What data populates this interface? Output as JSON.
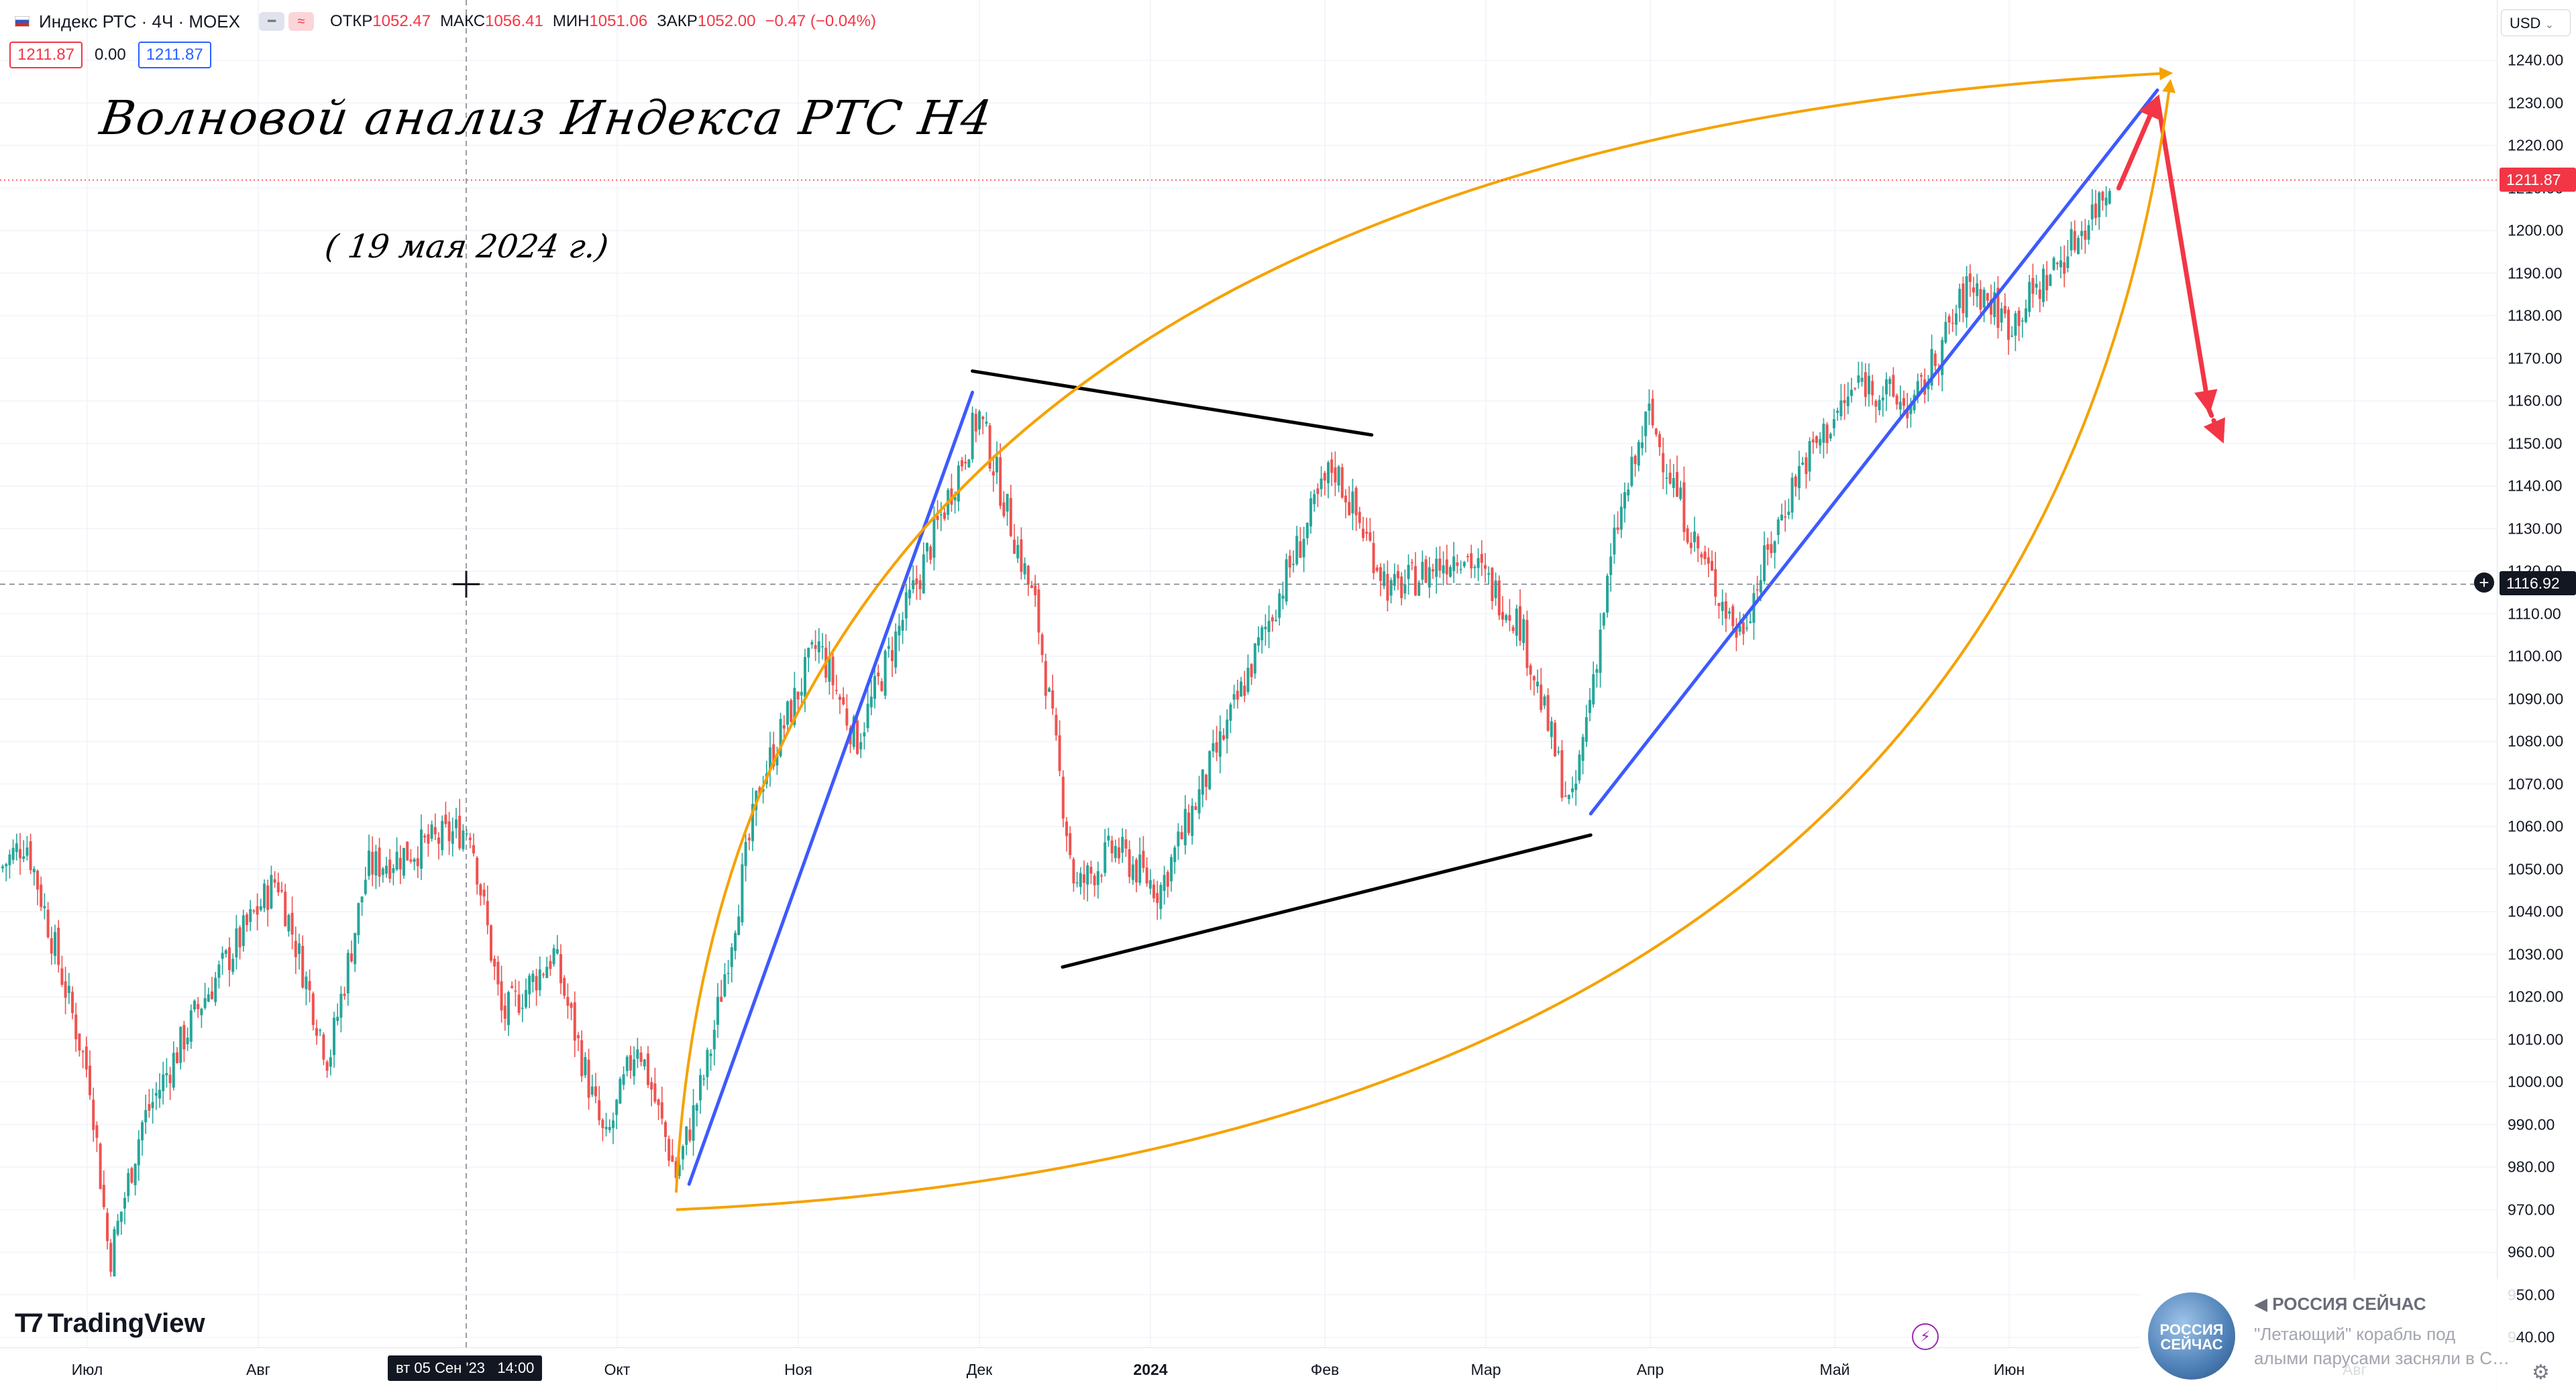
{
  "header": {
    "symbol": "Индекс РТС · 4Ч · MOEX",
    "ohlc": [
      {
        "k": "ОТКР",
        "v": "1052.47"
      },
      {
        "k": "МАКС",
        "v": "1056.41"
      },
      {
        "k": "МИН",
        "v": "1051.06"
      },
      {
        "k": "ЗАКР",
        "v": "1052.00"
      }
    ],
    "change": "−0.47 (−0.04%)",
    "bid": "1211.87",
    "spread": "0.00",
    "ask": "1211.87"
  },
  "annotations": {
    "title": "Волновой анализ Индекса РТС Н4",
    "date": "( 19 мая 2024 г.)"
  },
  "price_scale": {
    "currency": "USD",
    "current_price": "1211.87",
    "crosshair_price": "1116.92",
    "ticks": [
      "1240.00",
      "1230.00",
      "1220.00",
      "1210.00",
      "1200.00",
      "1190.00",
      "1180.00",
      "1170.00",
      "1160.00",
      "1150.00",
      "1140.00",
      "1130.00",
      "1120.00",
      "1110.00",
      "1100.00",
      "1090.00",
      "1080.00",
      "1070.00",
      "1060.00",
      "1050.00",
      "1040.00",
      "1030.00",
      "1020.00",
      "1010.00",
      "1000.00",
      "990.00",
      "980.00",
      "970.00",
      "960.00",
      "950.00",
      "940.00"
    ]
  },
  "time_axis": {
    "labels": [
      {
        "t": "Июл",
        "bold": false
      },
      {
        "t": "Авг",
        "bold": false
      },
      {
        "t": "Окт",
        "bold": false
      },
      {
        "t": "Ноя",
        "bold": false
      },
      {
        "t": "Дек",
        "bold": false
      },
      {
        "t": "2024",
        "bold": true
      },
      {
        "t": "Фев",
        "bold": false
      },
      {
        "t": "Мар",
        "bold": false
      },
      {
        "t": "Апр",
        "bold": false
      },
      {
        "t": "Май",
        "bold": false
      },
      {
        "t": "Июн",
        "bold": false
      },
      {
        "t": "Авг",
        "bold": false
      }
    ],
    "crosshair_time": "вт 05 Сен '23   14:00"
  },
  "branding": {
    "logo": "TradingView"
  },
  "news": {
    "source": "РОССИЯ СЕЙЧАС",
    "text1": "\"Летающий\" корабль под",
    "text2": "алыми парусами засняли в С…",
    "thumb": "РОССИЯ СЕЙЧАС"
  },
  "chart_data": {
    "type": "candlestick",
    "title": "Волновой анализ Индекса РТС Н4",
    "interval": "4H",
    "ylim": [
      938,
      1246
    ],
    "grid": true,
    "colors": {
      "up": "#26a69a",
      "down": "#ef5350",
      "blue": "#3d5afe",
      "orange": "#f5a200",
      "red": "#f23645",
      "black": "#000000"
    },
    "anchors": [
      {
        "date": "2023-06-24",
        "price": 1050
      },
      {
        "date": "2023-06-28",
        "price": 1057
      },
      {
        "date": "2023-07-08",
        "price": 1000
      },
      {
        "date": "2023-07-11",
        "price": 958
      },
      {
        "date": "2023-07-16",
        "price": 990
      },
      {
        "date": "2023-07-25",
        "price": 1018
      },
      {
        "date": "2023-08-06",
        "price": 1048
      },
      {
        "date": "2023-08-14",
        "price": 1005
      },
      {
        "date": "2023-08-20",
        "price": 1050
      },
      {
        "date": "2023-09-05",
        "price": 1060
      },
      {
        "date": "2023-09-10",
        "price": 1015
      },
      {
        "date": "2023-09-18",
        "price": 1030
      },
      {
        "date": "2023-09-26",
        "price": 985
      },
      {
        "date": "2023-10-01",
        "price": 1010
      },
      {
        "date": "2023-10-07",
        "price": 978
      },
      {
        "date": "2023-10-12",
        "price": 1005
      },
      {
        "date": "2023-10-20",
        "price": 1070
      },
      {
        "date": "2023-10-29",
        "price": 1103
      },
      {
        "date": "2023-11-04",
        "price": 1080
      },
      {
        "date": "2023-11-14",
        "price": 1120
      },
      {
        "date": "2023-11-23",
        "price": 1157
      },
      {
        "date": "2023-12-02",
        "price": 1110
      },
      {
        "date": "2023-12-08",
        "price": 1045
      },
      {
        "date": "2023-12-14",
        "price": 1055
      },
      {
        "date": "2023-12-21",
        "price": 1045
      },
      {
        "date": "2024-01-01",
        "price": 1085
      },
      {
        "date": "2024-01-10",
        "price": 1120
      },
      {
        "date": "2024-01-17",
        "price": 1145
      },
      {
        "date": "2024-01-26",
        "price": 1115
      },
      {
        "date": "2024-02-06",
        "price": 1125
      },
      {
        "date": "2024-02-15",
        "price": 1108
      },
      {
        "date": "2024-02-23",
        "price": 1063
      },
      {
        "date": "2024-03-01",
        "price": 1130
      },
      {
        "date": "2024-03-06",
        "price": 1157
      },
      {
        "date": "2024-03-13",
        "price": 1127
      },
      {
        "date": "2024-03-20",
        "price": 1105
      },
      {
        "date": "2024-03-29",
        "price": 1143
      },
      {
        "date": "2024-04-08",
        "price": 1165
      },
      {
        "date": "2024-04-16",
        "price": 1158
      },
      {
        "date": "2024-04-25",
        "price": 1188
      },
      {
        "date": "2024-05-01",
        "price": 1178
      },
      {
        "date": "2024-05-10",
        "price": 1195
      },
      {
        "date": "2024-05-17",
        "price": 1212
      }
    ],
    "drawings": [
      {
        "type": "line",
        "color": "blue",
        "from": {
          "date": "2023-10-09",
          "price": 976
        },
        "to": {
          "date": "2023-11-22",
          "price": 1162
        }
      },
      {
        "type": "line",
        "color": "blue",
        "from": {
          "date": "2024-02-26",
          "price": 1063
        },
        "to": {
          "date": "2024-05-24",
          "price": 1233
        }
      },
      {
        "type": "line",
        "color": "black",
        "from": {
          "date": "2023-11-22",
          "price": 1167
        },
        "to": {
          "date": "2024-01-23",
          "price": 1152
        }
      },
      {
        "type": "line",
        "color": "black",
        "from": {
          "date": "2023-12-06",
          "price": 1027
        },
        "to": {
          "date": "2024-02-26",
          "price": 1058
        }
      },
      {
        "type": "arrow",
        "color": "red",
        "from": {
          "date": "2024-05-18",
          "price": 1210
        },
        "to": {
          "date": "2024-05-24",
          "price": 1231
        }
      },
      {
        "type": "arrow",
        "color": "red",
        "from": {
          "date": "2024-05-24",
          "price": 1231
        },
        "to": {
          "date": "2024-06-01",
          "price": 1158
        }
      },
      {
        "type": "arrow-dashed",
        "color": "red",
        "from": {
          "date": "2024-06-01",
          "price": 1158
        },
        "to": {
          "date": "2024-06-03",
          "price": 1151
        }
      },
      {
        "type": "arc",
        "color": "orange",
        "from": {
          "date": "2023-10-07",
          "price": 974
        },
        "control": {
          "date": "2023-10-15",
          "price": 1220
        },
        "to": {
          "date": "2024-05-26",
          "price": 1237
        }
      },
      {
        "type": "arc",
        "color": "orange",
        "from": {
          "date": "2023-10-07",
          "price": 970
        },
        "control": {
          "date": "2024-05-04",
          "price": 984
        },
        "to": {
          "date": "2024-05-26",
          "price": 1235
        }
      }
    ],
    "current_price": 1211.87,
    "crosshair": {
      "date": "2023-09-05",
      "price": 1116.92
    }
  }
}
